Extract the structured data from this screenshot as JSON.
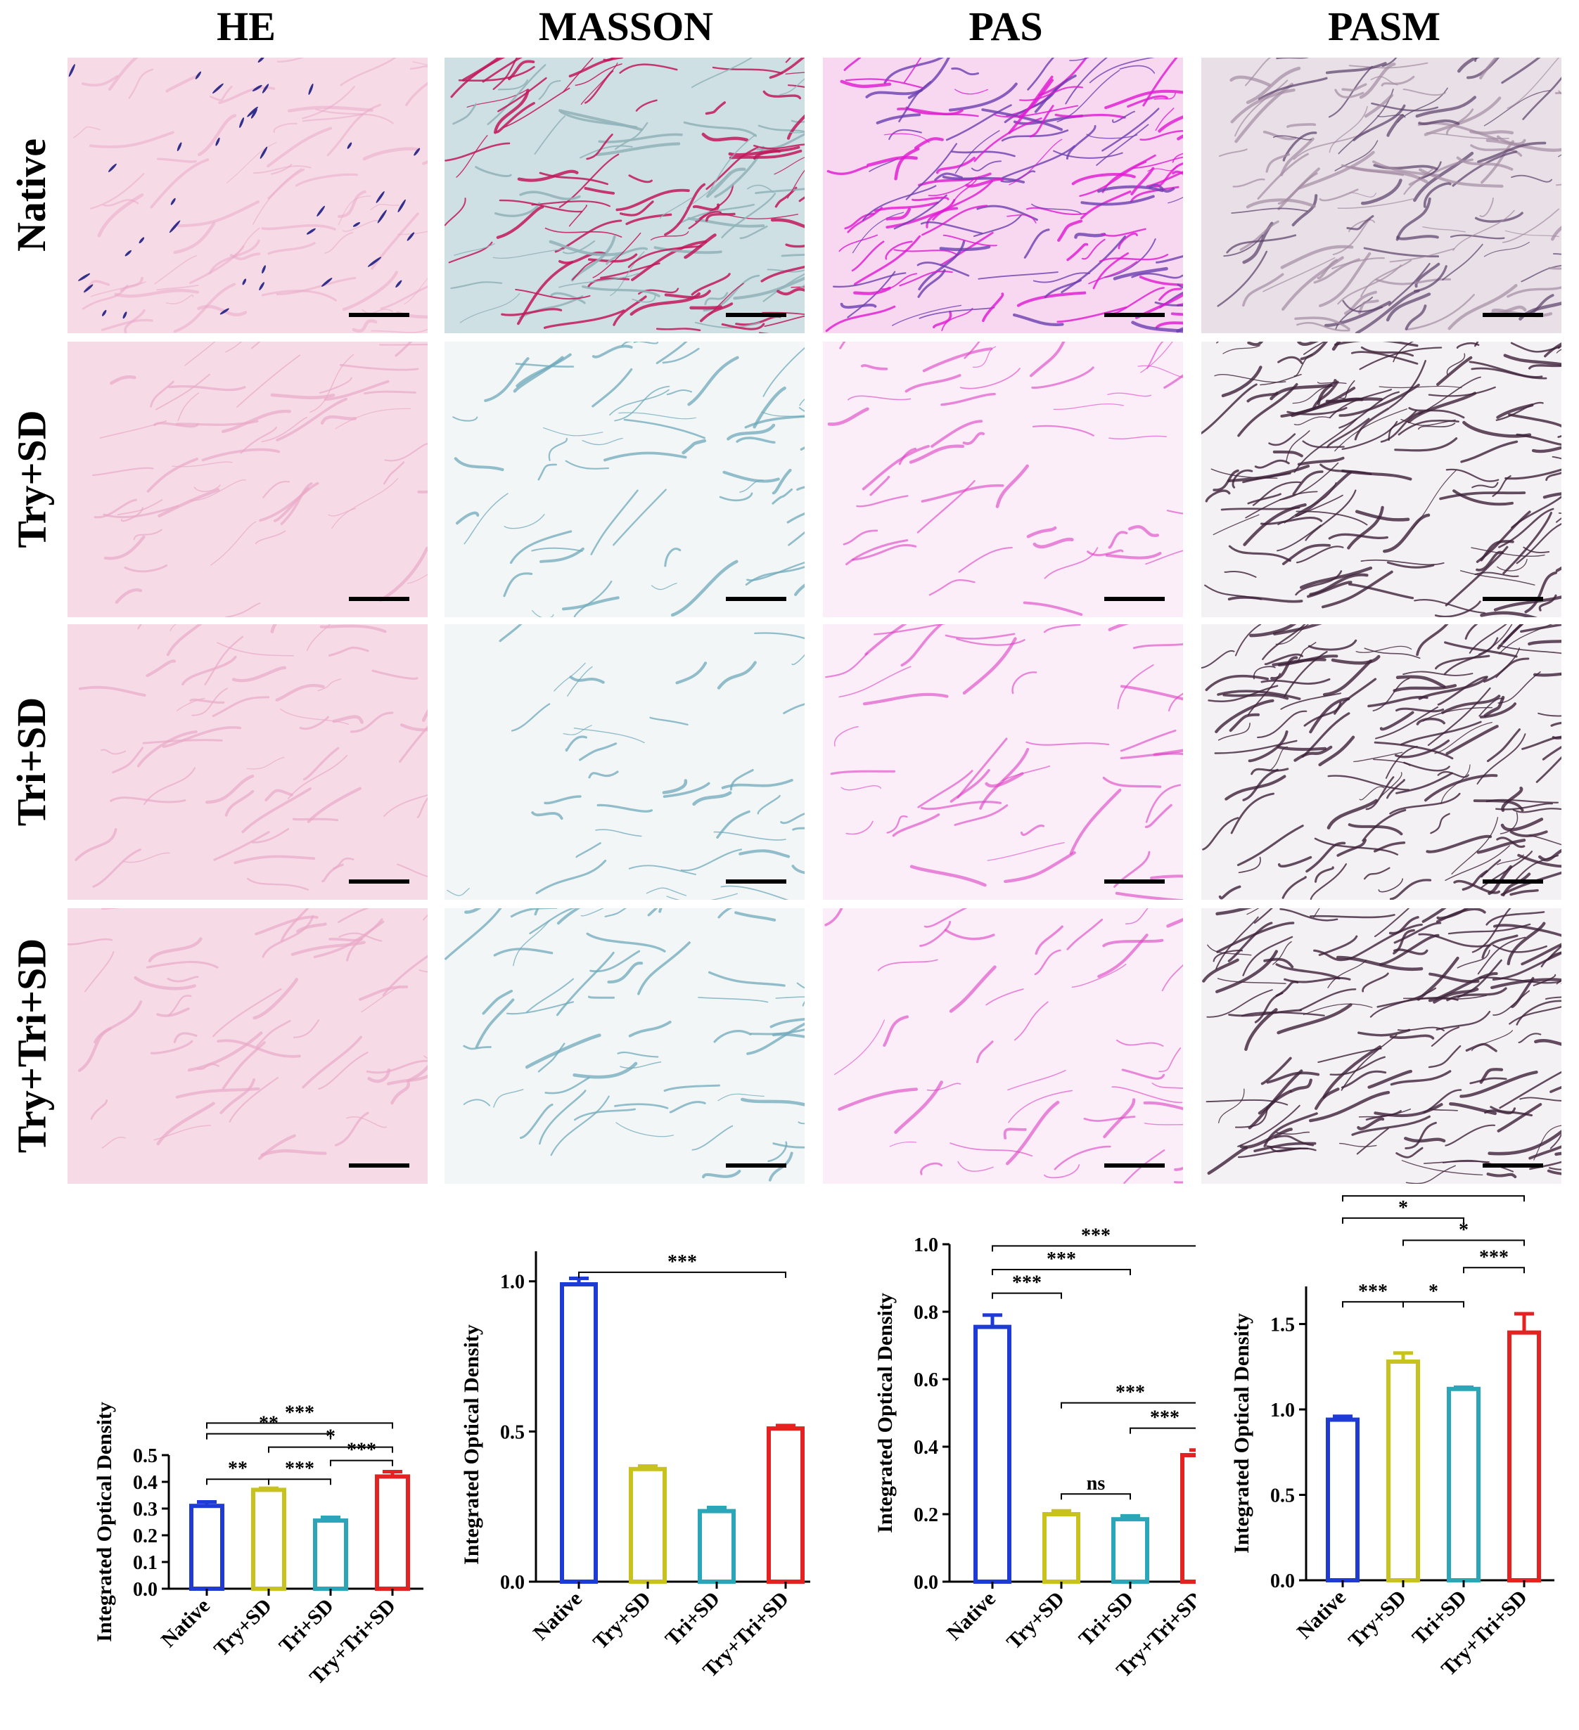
{
  "stains": [
    "HE",
    "MASSON",
    "PAS",
    "PASM"
  ],
  "groups": [
    "Native",
    "Try+SD",
    "Tri+SD",
    "Try+Tri+SD"
  ],
  "colors": {
    "bars": [
      "#1f3bd6",
      "#c8c21e",
      "#2aa6b8",
      "#e42222"
    ],
    "he_bg": "#f6dbe6",
    "he_fiber": "#e9a9c8",
    "he_nucleus": "#33308c",
    "masson_bg": "#cfe0e4",
    "masson_fiber": "#6fa9b9",
    "masson_red": "#c2185b",
    "pas_bg": "#f7d8f0",
    "pas_fiber": "#de3fc4",
    "pas_native": "#e018d2",
    "pasm_bg": "#e8e0e6",
    "pasm_fiber": "#3d2238",
    "pasm_native": "#a48ca3"
  },
  "chart_data": [
    {
      "type": "bar",
      "stain": "HE",
      "categories": [
        "Native",
        "Try+SD",
        "Tri+SD",
        "Try+Tri+SD"
      ],
      "values": [
        0.31,
        0.37,
        0.255,
        0.42
      ],
      "errors": [
        0.015,
        0.006,
        0.012,
        0.018
      ],
      "ylabel": "Integrated  Optical Density",
      "ylim": [
        0.0,
        0.5
      ],
      "yticks": [
        "0.0",
        "0.1",
        "0.2",
        "0.3",
        "0.4",
        "0.5"
      ],
      "ytick_values": [
        0.0,
        0.1,
        0.2,
        0.3,
        0.4,
        0.5
      ],
      "significance": [
        {
          "from": 0,
          "to": 3,
          "label": "***",
          "level": 0.62
        },
        {
          "from": 0,
          "to": 2,
          "label": "**",
          "level": 0.58
        },
        {
          "from": 1,
          "to": 3,
          "label": "*",
          "level": 0.53
        },
        {
          "from": 2,
          "to": 3,
          "label": "***",
          "level": 0.48
        },
        {
          "from": 0,
          "to": 1,
          "label": "**",
          "level": 0.41
        },
        {
          "from": 1,
          "to": 2,
          "label": "***",
          "level": 0.41
        }
      ]
    },
    {
      "type": "bar",
      "stain": "MASSON",
      "categories": [
        "Native",
        "Try+SD",
        "Tri+SD",
        "Try+Tri+SD"
      ],
      "values": [
        0.99,
        0.375,
        0.235,
        0.51
      ],
      "errors": [
        0.02,
        0.01,
        0.012,
        0.01
      ],
      "ylabel": "Integrated  Optical Density",
      "ylim": [
        0.0,
        1.1
      ],
      "yticks": [
        "0.0",
        "0.5",
        "1.0"
      ],
      "ytick_values": [
        0.0,
        0.5,
        1.0
      ],
      "significance": [
        {
          "from": 0,
          "to": 3,
          "label": "***",
          "level": 1.03
        }
      ]
    },
    {
      "type": "bar",
      "stain": "PAS",
      "categories": [
        "Native",
        "Try+SD",
        "Tri+SD",
        "Try+Tri+SD"
      ],
      "values": [
        0.755,
        0.2,
        0.185,
        0.375
      ],
      "errors": [
        0.035,
        0.01,
        0.01,
        0.015
      ],
      "ylabel": "Integrated  Optical Density",
      "ylim": [
        0.0,
        1.0
      ],
      "yticks": [
        "0.0",
        "0.2",
        "0.4",
        "0.6",
        "0.8",
        "1.0"
      ],
      "ytick_values": [
        0.0,
        0.2,
        0.4,
        0.6,
        0.8,
        1.0
      ],
      "significance": [
        {
          "from": 0,
          "to": 3,
          "label": "***",
          "level": 0.995
        },
        {
          "from": 0,
          "to": 2,
          "label": "***",
          "level": 0.925
        },
        {
          "from": 0,
          "to": 1,
          "label": "***",
          "level": 0.855
        },
        {
          "from": 1,
          "to": 3,
          "label": "***",
          "level": 0.53
        },
        {
          "from": 2,
          "to": 3,
          "label": "***",
          "level": 0.455
        },
        {
          "from": 1,
          "to": 2,
          "label": "ns",
          "level": 0.26
        }
      ]
    },
    {
      "type": "bar",
      "stain": "PASM",
      "categories": [
        "Native",
        "Try+SD",
        "Tri+SD",
        "Try+Tri+SD"
      ],
      "values": [
        0.94,
        1.28,
        1.12,
        1.45
      ],
      "errors": [
        0.02,
        0.05,
        0.01,
        0.11
      ],
      "ylabel": "Integrated  Optical Density",
      "ylim": [
        0.0,
        1.72
      ],
      "yticks": [
        "0.0",
        "0.5",
        "1.0",
        "1.5"
      ],
      "ytick_values": [
        0.0,
        0.5,
        1.0,
        1.5
      ],
      "significance": [
        {
          "from": 0,
          "to": 3,
          "label": "***",
          "level": 2.25
        },
        {
          "from": 0,
          "to": 2,
          "label": "*",
          "level": 2.12
        },
        {
          "from": 1,
          "to": 3,
          "label": "*",
          "level": 1.99
        },
        {
          "from": 2,
          "to": 3,
          "label": "***",
          "level": 1.83
        },
        {
          "from": 0,
          "to": 1,
          "label": "***",
          "level": 1.63
        },
        {
          "from": 1,
          "to": 2,
          "label": "*",
          "level": 1.63
        }
      ]
    }
  ]
}
